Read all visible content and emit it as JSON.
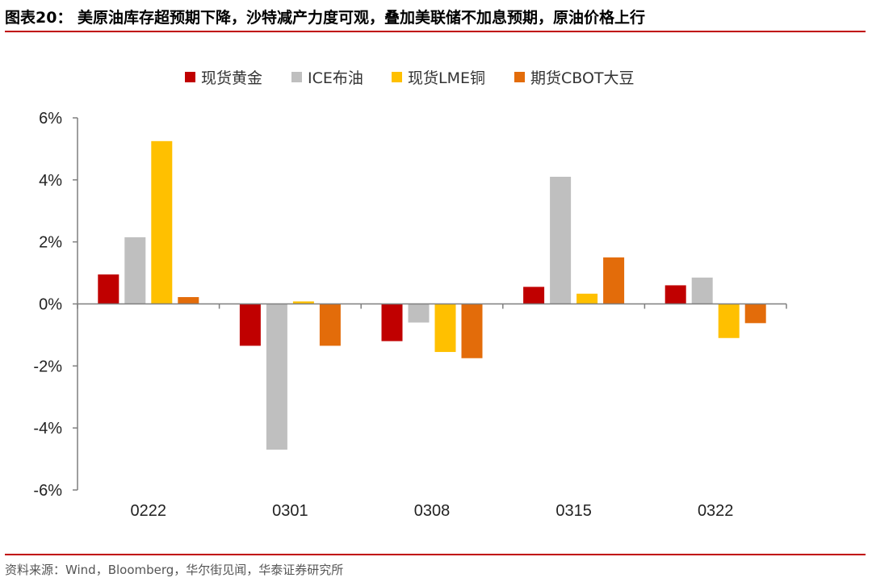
{
  "header": {
    "title": "图表20： 美原油库存超预期下降，沙特减产力度可观，叠加美联储不加息预期，原油价格上行"
  },
  "footer": {
    "source": "资料来源：Wind，Bloomberg，华尔街见闻，华泰证券研究所"
  },
  "chart_data": {
    "type": "bar",
    "categories": [
      "0222",
      "0301",
      "0308",
      "0315",
      "0322"
    ],
    "series": [
      {
        "name": "现货黄金",
        "color": "#c00000",
        "values": [
          0.95,
          -1.35,
          -1.2,
          0.55,
          0.6
        ]
      },
      {
        "name": "ICE布油",
        "color": "#bfbfbf",
        "values": [
          2.15,
          -4.7,
          -0.6,
          4.1,
          0.85
        ]
      },
      {
        "name": "现货LME铜",
        "color": "#ffc000",
        "values": [
          5.25,
          0.08,
          -1.55,
          0.33,
          -1.1
        ]
      },
      {
        "name": "期货CBOT大豆",
        "color": "#e36c0a",
        "values": [
          0.22,
          -1.35,
          -1.75,
          1.5,
          -0.62
        ]
      }
    ],
    "yticks": [
      "6%",
      "4%",
      "2%",
      "0%",
      "-2%",
      "-4%",
      "-6%"
    ],
    "ylim": [
      -6,
      6
    ],
    "ylabel": "",
    "xlabel": "",
    "grid": false,
    "legend": "top-center"
  }
}
